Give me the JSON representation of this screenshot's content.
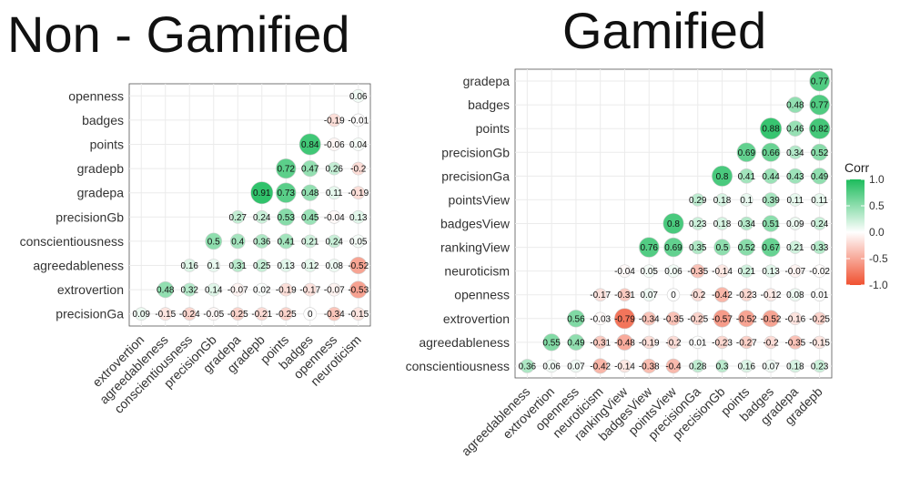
{
  "titles": {
    "left": "Non - Gamified",
    "right": "Gamified"
  },
  "colors": {
    "negative": "#f05030",
    "zero": "#ffffff",
    "positive": "#1cbc5c",
    "grid": "#ebebeb",
    "panel_border": "#555555"
  },
  "chart_data": [
    {
      "type": "heatmap",
      "title": "Non - Gamified",
      "variables": [
        "precisionGa",
        "extrovertion",
        "agreedableness",
        "conscientiousness",
        "precisionGb",
        "gradepa",
        "gradepb",
        "points",
        "badges",
        "openness",
        "neuroticism"
      ],
      "x_labels": [
        "extrovertion",
        "agreedableness",
        "conscientiousness",
        "precisionGb",
        "gradepa",
        "gradepb",
        "points",
        "badges",
        "openness",
        "neuroticism"
      ],
      "y_labels": [
        "precisionGa",
        "extrovertion",
        "agreedableness",
        "conscientiousness",
        "precisionGb",
        "gradepa",
        "gradepb",
        "points",
        "badges",
        "openness"
      ],
      "cells": [
        [
          "precisionGa",
          "extrovertion",
          0.09
        ],
        [
          "precisionGa",
          "agreedableness",
          -0.15
        ],
        [
          "precisionGa",
          "conscientiousness",
          -0.24
        ],
        [
          "precisionGa",
          "precisionGb",
          -0.05
        ],
        [
          "precisionGa",
          "gradepa",
          -0.25
        ],
        [
          "precisionGa",
          "gradepb",
          -0.21
        ],
        [
          "precisionGa",
          "points",
          -0.25
        ],
        [
          "precisionGa",
          "badges",
          0
        ],
        [
          "precisionGa",
          "openness",
          -0.34
        ],
        [
          "precisionGa",
          "neuroticism",
          -0.15
        ],
        [
          "extrovertion",
          "agreedableness",
          0.48
        ],
        [
          "extrovertion",
          "conscientiousness",
          0.32
        ],
        [
          "extrovertion",
          "precisionGb",
          0.14
        ],
        [
          "extrovertion",
          "gradepa",
          -0.07
        ],
        [
          "extrovertion",
          "gradepb",
          0.02
        ],
        [
          "extrovertion",
          "points",
          -0.19
        ],
        [
          "extrovertion",
          "badges",
          -0.17
        ],
        [
          "extrovertion",
          "openness",
          -0.07
        ],
        [
          "extrovertion",
          "neuroticism",
          -0.53
        ],
        [
          "agreedableness",
          "conscientiousness",
          0.16
        ],
        [
          "agreedableness",
          "precisionGb",
          0.1
        ],
        [
          "agreedableness",
          "gradepa",
          0.31
        ],
        [
          "agreedableness",
          "gradepb",
          0.25
        ],
        [
          "agreedableness",
          "points",
          0.13
        ],
        [
          "agreedableness",
          "badges",
          0.12
        ],
        [
          "agreedableness",
          "openness",
          0.08
        ],
        [
          "agreedableness",
          "neuroticism",
          -0.52
        ],
        [
          "conscientiousness",
          "precisionGb",
          0.5
        ],
        [
          "conscientiousness",
          "gradepa",
          0.4
        ],
        [
          "conscientiousness",
          "gradepb",
          0.36
        ],
        [
          "conscientiousness",
          "points",
          0.41
        ],
        [
          "conscientiousness",
          "badges",
          0.21
        ],
        [
          "conscientiousness",
          "openness",
          0.24
        ],
        [
          "conscientiousness",
          "neuroticism",
          0.05
        ],
        [
          "precisionGb",
          "gradepa",
          0.27
        ],
        [
          "precisionGb",
          "gradepb",
          0.24
        ],
        [
          "precisionGb",
          "points",
          0.53
        ],
        [
          "precisionGb",
          "badges",
          0.45
        ],
        [
          "precisionGb",
          "openness",
          -0.04
        ],
        [
          "precisionGb",
          "neuroticism",
          0.13
        ],
        [
          "gradepa",
          "gradepb",
          0.91
        ],
        [
          "gradepa",
          "points",
          0.73
        ],
        [
          "gradepa",
          "badges",
          0.48
        ],
        [
          "gradepa",
          "openness",
          0.11
        ],
        [
          "gradepa",
          "neuroticism",
          -0.19
        ],
        [
          "gradepb",
          "points",
          0.72
        ],
        [
          "gradepb",
          "badges",
          0.47
        ],
        [
          "gradepb",
          "openness",
          0.26
        ],
        [
          "gradepb",
          "neuroticism",
          -0.2
        ],
        [
          "points",
          "badges",
          0.84
        ],
        [
          "points",
          "openness",
          -0.06
        ],
        [
          "points",
          "neuroticism",
          0.04
        ],
        [
          "badges",
          "openness",
          -0.19
        ],
        [
          "badges",
          "neuroticism",
          -0.01
        ],
        [
          "openness",
          "neuroticism",
          0.06
        ]
      ],
      "grid": true
    },
    {
      "type": "heatmap",
      "title": "Gamified",
      "variables": [
        "conscientiousness",
        "agreedableness",
        "extrovertion",
        "openness",
        "neuroticism",
        "rankingView",
        "badgesView",
        "pointsView",
        "precisionGa",
        "precisionGb",
        "points",
        "badges",
        "gradepa",
        "gradepb"
      ],
      "x_labels": [
        "agreedableness",
        "extrovertion",
        "openness",
        "neuroticism",
        "rankingView",
        "badgesView",
        "pointsView",
        "precisionGa",
        "precisionGb",
        "points",
        "badges",
        "gradepa",
        "gradepb"
      ],
      "y_labels": [
        "conscientiousness",
        "agreedableness",
        "extrovertion",
        "openness",
        "neuroticism",
        "rankingView",
        "badgesView",
        "pointsView",
        "precisionGa",
        "precisionGb",
        "points",
        "badges",
        "gradepa"
      ],
      "cells": [
        [
          "conscientiousness",
          "agreedableness",
          0.36
        ],
        [
          "conscientiousness",
          "extrovertion",
          0.06
        ],
        [
          "conscientiousness",
          "openness",
          0.07
        ],
        [
          "conscientiousness",
          "neuroticism",
          -0.42
        ],
        [
          "conscientiousness",
          "rankingView",
          -0.14
        ],
        [
          "conscientiousness",
          "badgesView",
          -0.38
        ],
        [
          "conscientiousness",
          "pointsView",
          -0.4
        ],
        [
          "conscientiousness",
          "precisionGa",
          0.28
        ],
        [
          "conscientiousness",
          "precisionGb",
          0.3
        ],
        [
          "conscientiousness",
          "points",
          0.16
        ],
        [
          "conscientiousness",
          "badges",
          0.07
        ],
        [
          "conscientiousness",
          "gradepa",
          0.18
        ],
        [
          "conscientiousness",
          "gradepb",
          0.23
        ],
        [
          "agreedableness",
          "extrovertion",
          0.55
        ],
        [
          "agreedableness",
          "openness",
          0.49
        ],
        [
          "agreedableness",
          "neuroticism",
          -0.31
        ],
        [
          "agreedableness",
          "rankingView",
          -0.48
        ],
        [
          "agreedableness",
          "badgesView",
          -0.19
        ],
        [
          "agreedableness",
          "pointsView",
          -0.2
        ],
        [
          "agreedableness",
          "precisionGa",
          0.01
        ],
        [
          "agreedableness",
          "precisionGb",
          -0.23
        ],
        [
          "agreedableness",
          "points",
          -0.27
        ],
        [
          "agreedableness",
          "badges",
          -0.2
        ],
        [
          "agreedableness",
          "gradepa",
          -0.35
        ],
        [
          "agreedableness",
          "gradepb",
          -0.15
        ],
        [
          "extrovertion",
          "openness",
          0.56
        ],
        [
          "extrovertion",
          "neuroticism",
          -0.03
        ],
        [
          "extrovertion",
          "rankingView",
          -0.79
        ],
        [
          "extrovertion",
          "badgesView",
          -0.34
        ],
        [
          "extrovertion",
          "pointsView",
          -0.35
        ],
        [
          "extrovertion",
          "precisionGa",
          -0.25
        ],
        [
          "extrovertion",
          "precisionGb",
          -0.57
        ],
        [
          "extrovertion",
          "points",
          -0.52
        ],
        [
          "extrovertion",
          "badges",
          -0.52
        ],
        [
          "extrovertion",
          "gradepa",
          -0.16
        ],
        [
          "extrovertion",
          "gradepb",
          -0.25
        ],
        [
          "openness",
          "neuroticism",
          -0.17
        ],
        [
          "openness",
          "rankingView",
          -0.31
        ],
        [
          "openness",
          "badgesView",
          0.07
        ],
        [
          "openness",
          "pointsView",
          0
        ],
        [
          "openness",
          "precisionGa",
          -0.2
        ],
        [
          "openness",
          "precisionGb",
          -0.42
        ],
        [
          "openness",
          "points",
          -0.23
        ],
        [
          "openness",
          "badges",
          -0.12
        ],
        [
          "openness",
          "gradepa",
          0.08
        ],
        [
          "openness",
          "gradepb",
          0.01
        ],
        [
          "neuroticism",
          "rankingView",
          -0.04
        ],
        [
          "neuroticism",
          "badgesView",
          0.05
        ],
        [
          "neuroticism",
          "pointsView",
          0.06
        ],
        [
          "neuroticism",
          "precisionGa",
          -0.35
        ],
        [
          "neuroticism",
          "precisionGb",
          -0.14
        ],
        [
          "neuroticism",
          "points",
          0.21
        ],
        [
          "neuroticism",
          "badges",
          0.13
        ],
        [
          "neuroticism",
          "gradepa",
          -0.07
        ],
        [
          "neuroticism",
          "gradepb",
          -0.02
        ],
        [
          "rankingView",
          "badgesView",
          0.76
        ],
        [
          "rankingView",
          "pointsView",
          0.69
        ],
        [
          "rankingView",
          "precisionGa",
          0.35
        ],
        [
          "rankingView",
          "precisionGb",
          0.5
        ],
        [
          "rankingView",
          "points",
          0.52
        ],
        [
          "rankingView",
          "badges",
          0.67
        ],
        [
          "rankingView",
          "gradepa",
          0.21
        ],
        [
          "rankingView",
          "gradepb",
          0.33
        ],
        [
          "badgesView",
          "pointsView",
          0.8
        ],
        [
          "badgesView",
          "precisionGa",
          0.23
        ],
        [
          "badgesView",
          "precisionGb",
          0.18
        ],
        [
          "badgesView",
          "points",
          0.34
        ],
        [
          "badgesView",
          "badges",
          0.51
        ],
        [
          "badgesView",
          "gradepa",
          0.09
        ],
        [
          "badgesView",
          "gradepb",
          0.24
        ],
        [
          "pointsView",
          "precisionGa",
          0.29
        ],
        [
          "pointsView",
          "precisionGb",
          0.18
        ],
        [
          "pointsView",
          "points",
          0.1
        ],
        [
          "pointsView",
          "badges",
          0.39
        ],
        [
          "pointsView",
          "gradepa",
          0.11
        ],
        [
          "pointsView",
          "gradepb",
          0.11
        ],
        [
          "precisionGa",
          "precisionGb",
          0.8
        ],
        [
          "precisionGa",
          "points",
          0.41
        ],
        [
          "precisionGa",
          "badges",
          0.44
        ],
        [
          "precisionGa",
          "gradepa",
          0.43
        ],
        [
          "precisionGa",
          "gradepb",
          0.49
        ],
        [
          "precisionGb",
          "points",
          0.69
        ],
        [
          "precisionGb",
          "badges",
          0.66
        ],
        [
          "precisionGb",
          "gradepa",
          0.34
        ],
        [
          "precisionGb",
          "gradepb",
          0.52
        ],
        [
          "points",
          "badges",
          0.88
        ],
        [
          "points",
          "gradepa",
          0.46
        ],
        [
          "points",
          "gradepb",
          0.82
        ],
        [
          "badges",
          "gradepa",
          0.48
        ],
        [
          "badges",
          "gradepb",
          0.77
        ],
        [
          "gradepa",
          "gradepb",
          0.77
        ]
      ],
      "grid": true,
      "legend": {
        "title": "Corr",
        "ticks": [
          "1.0",
          "0.5",
          "0.0",
          "-0.5",
          "-1.0"
        ],
        "tick_values": [
          1.0,
          0.5,
          0.0,
          -0.5,
          -1.0
        ],
        "range": [
          -1,
          1
        ],
        "placement": "right"
      }
    }
  ]
}
